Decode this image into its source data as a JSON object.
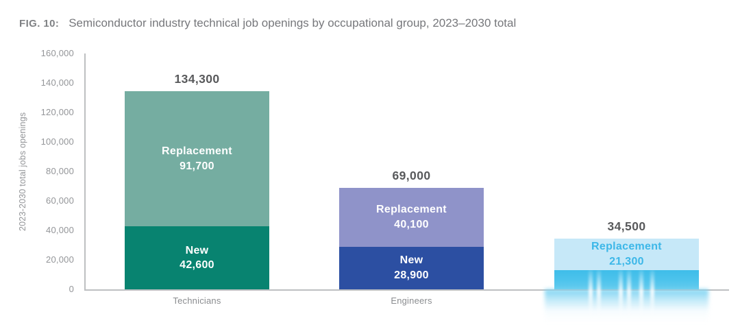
{
  "figure": {
    "fig_label": "FIG. 10:",
    "title": "Semiconductor industry technical job openings by occupational group, 2023–2030 total"
  },
  "chart_data": {
    "type": "bar",
    "stacked": true,
    "title": "FIG. 10: Semiconductor industry technical job openings by occupational group, 2023–2030 total",
    "xlabel": "",
    "ylabel": "2023-2030 total jobs openings",
    "ylim": [
      0,
      160000
    ],
    "ytick_interval": 20000,
    "ytick_labels": [
      "0",
      "20,000",
      "40,000",
      "60,000",
      "80,000",
      "100,000",
      "120,000",
      "140,000",
      "160,000"
    ],
    "grid": false,
    "legend": false,
    "categories": [
      "Technicians",
      "Engineers",
      ""
    ],
    "series": [
      {
        "name": "New",
        "values": [
          42600,
          28900,
          13200
        ]
      },
      {
        "name": "Replacement",
        "values": [
          91700,
          40100,
          21300
        ]
      }
    ],
    "totals": [
      134300,
      69000,
      34500
    ],
    "note": "Third bar is partially faded in source: its category label and New segment label are not visible; 13200 = 34,500 total minus 21,300 replacement.",
    "bars": [
      {
        "category": "Technicians",
        "total": 134300,
        "total_label": "134,300",
        "segments": [
          {
            "name": "Replacement",
            "label": "Replacement",
            "value": 91700,
            "value_label": "91,700",
            "color": "#75ada1",
            "text_color": "#ffffff",
            "label_visible": true
          },
          {
            "name": "New",
            "label": "New",
            "value": 42600,
            "value_label": "42,600",
            "color": "#088370",
            "text_color": "#ffffff",
            "label_visible": true
          }
        ]
      },
      {
        "category": "Engineers",
        "total": 69000,
        "total_label": "69,000",
        "segments": [
          {
            "name": "Replacement",
            "label": "Replacement",
            "value": 40100,
            "value_label": "40,100",
            "color": "#8f93c9",
            "text_color": "#ffffff",
            "label_visible": true
          },
          {
            "name": "New",
            "label": "New",
            "value": 28900,
            "value_label": "28,900",
            "color": "#2c4fa2",
            "text_color": "#ffffff",
            "label_visible": true
          }
        ]
      },
      {
        "category": "",
        "total": 34500,
        "total_label": "34,500",
        "segments": [
          {
            "name": "Replacement",
            "label": "Replacement",
            "value": 21300,
            "value_label": "21,300",
            "color": "#c6e8f8",
            "text_color": "#3cb7e8",
            "label_visible": true
          },
          {
            "name": "New",
            "label": "",
            "value": 13200,
            "value_label": "",
            "color": "#49c0ea",
            "text_color": "#ffffff",
            "label_visible": false,
            "style": "fade"
          }
        ]
      }
    ]
  }
}
